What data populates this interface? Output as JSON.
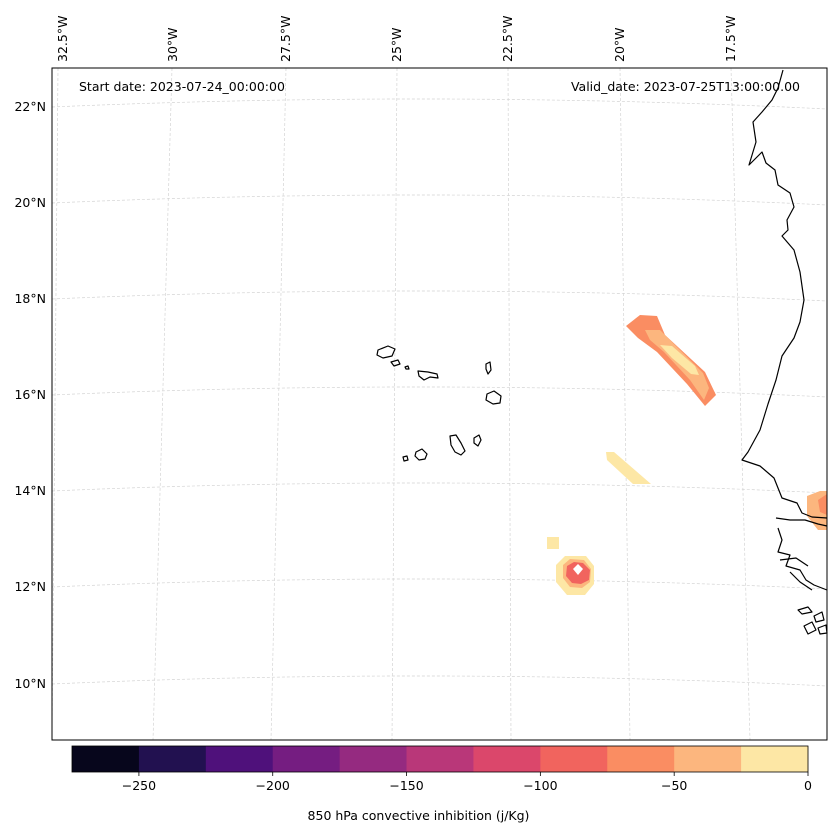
{
  "map": {
    "start_date": "Start date: 2023-07-24_00:00:00",
    "valid_date": "Valid_date: 2023-07-25T13:00:00.00",
    "lon_labels": [
      "32.5°W",
      "30°W",
      "27.5°W",
      "25°W",
      "22.5°W",
      "20°W",
      "17.5°W"
    ],
    "lat_labels": [
      "22°N",
      "20°N",
      "18°N",
      "16°N",
      "14°N",
      "12°N",
      "10°N"
    ],
    "region": "Cape Verde islands and West African coast (Senegal)"
  },
  "colorbar": {
    "label": "850 hPa convective inhibition (j/Kg)",
    "tick_labels": [
      "−250",
      "−200",
      "−150",
      "−100",
      "−50",
      "0"
    ],
    "range": [
      -275,
      0
    ],
    "step": 25,
    "colors": [
      "#07061c",
      "#221150",
      "#4f117b",
      "#751d81",
      "#952a80",
      "#b93779",
      "#db476b",
      "#f1645e",
      "#fa8d62",
      "#fcb67e",
      "#fde7a5"
    ]
  },
  "colors": {
    "coast": "#000000",
    "grid": "#cccccc",
    "cin_neg_100_75": "#f1645e",
    "cin_neg_75_50": "#fa8d62",
    "cin_neg_50_25": "#fcb67e",
    "cin_neg_25_0": "#fde7a5"
  }
}
